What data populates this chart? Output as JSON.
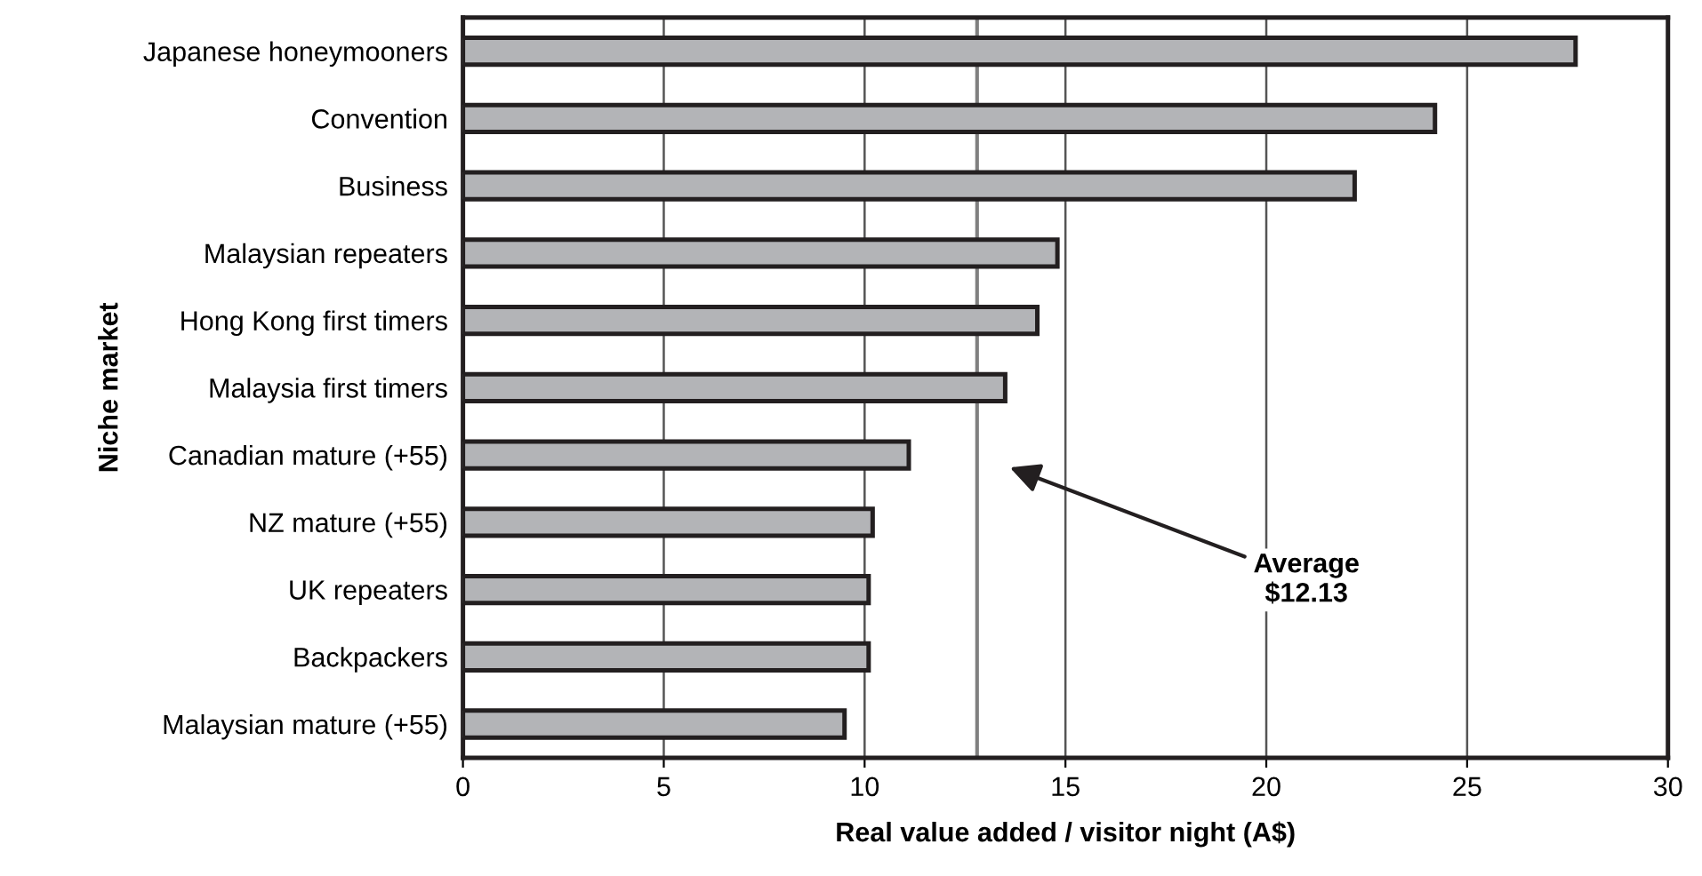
{
  "chart_data": {
    "type": "bar",
    "orientation": "horizontal",
    "ylabel": "Niche market",
    "xlabel": "Real value added / visitor night (A$)",
    "categories": [
      "Japanese honeymooners",
      "Convention",
      "Business",
      "Malaysian repeaters",
      "Hong Kong first timers",
      "Malaysia first timers",
      "Canadian mature (+55)",
      "NZ mature (+55)",
      "UK repeaters",
      "Backpackers",
      "Malaysian mature (+55)"
    ],
    "values": [
      27.7,
      24.2,
      22.2,
      14.8,
      14.3,
      13.5,
      11.1,
      10.2,
      10.1,
      10.1,
      9.5
    ],
    "color": "#b3b4b7",
    "xlim": [
      0,
      30
    ],
    "xticks": [
      0,
      5,
      10,
      15,
      20,
      25,
      30
    ],
    "grid": "x",
    "annotations": [
      "Average\n$12.13"
    ],
    "ref_lines": [
      {
        "axis": "x",
        "value": 12.8,
        "color": "#808080"
      }
    ]
  }
}
